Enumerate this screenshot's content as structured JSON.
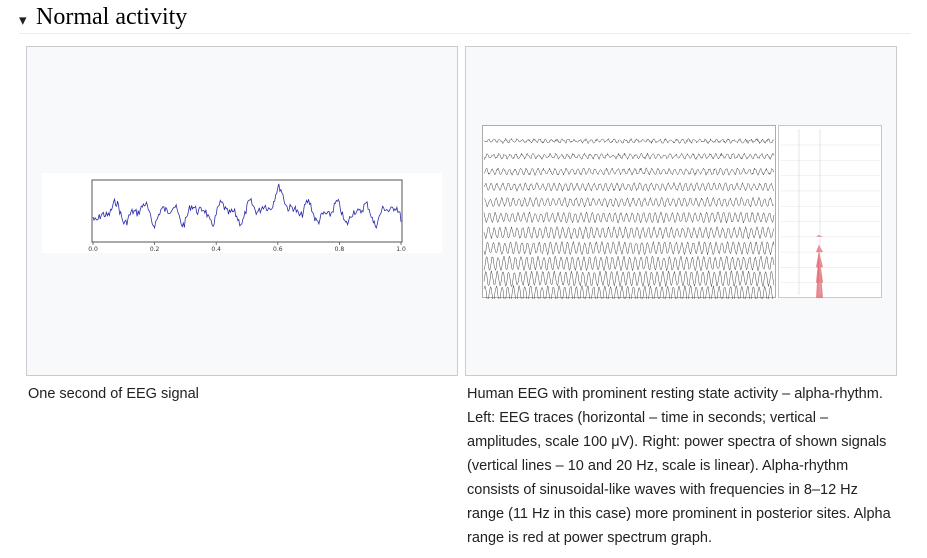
{
  "section": {
    "arrow": "▾",
    "title": "Normal activity"
  },
  "gallery": [
    {
      "caption": "One second of EEG signal",
      "image": {
        "x_ticks": [
          "0.0",
          "0.2",
          "0.4",
          "0.6",
          "0.8",
          "1.0"
        ]
      }
    },
    {
      "caption": "Human EEG with prominent resting state activity – alpha-rhythm. Left: EEG traces (horizontal – time in seconds; vertical – amplitudes, scale 100 μV). Right: power spectra of shown signals (vertical lines – 10 and 20 Hz, scale is linear). Alpha-rhythm consists of sinusoidal-like waves with frequencies in 8–12 Hz range (11 Hz in this case) more prominent in posterior sites. Alpha range is red at power spectrum graph."
    }
  ],
  "colors": {
    "signal": "#2a2aa8",
    "trace": "#333333",
    "alpha": "#e8707a"
  }
}
